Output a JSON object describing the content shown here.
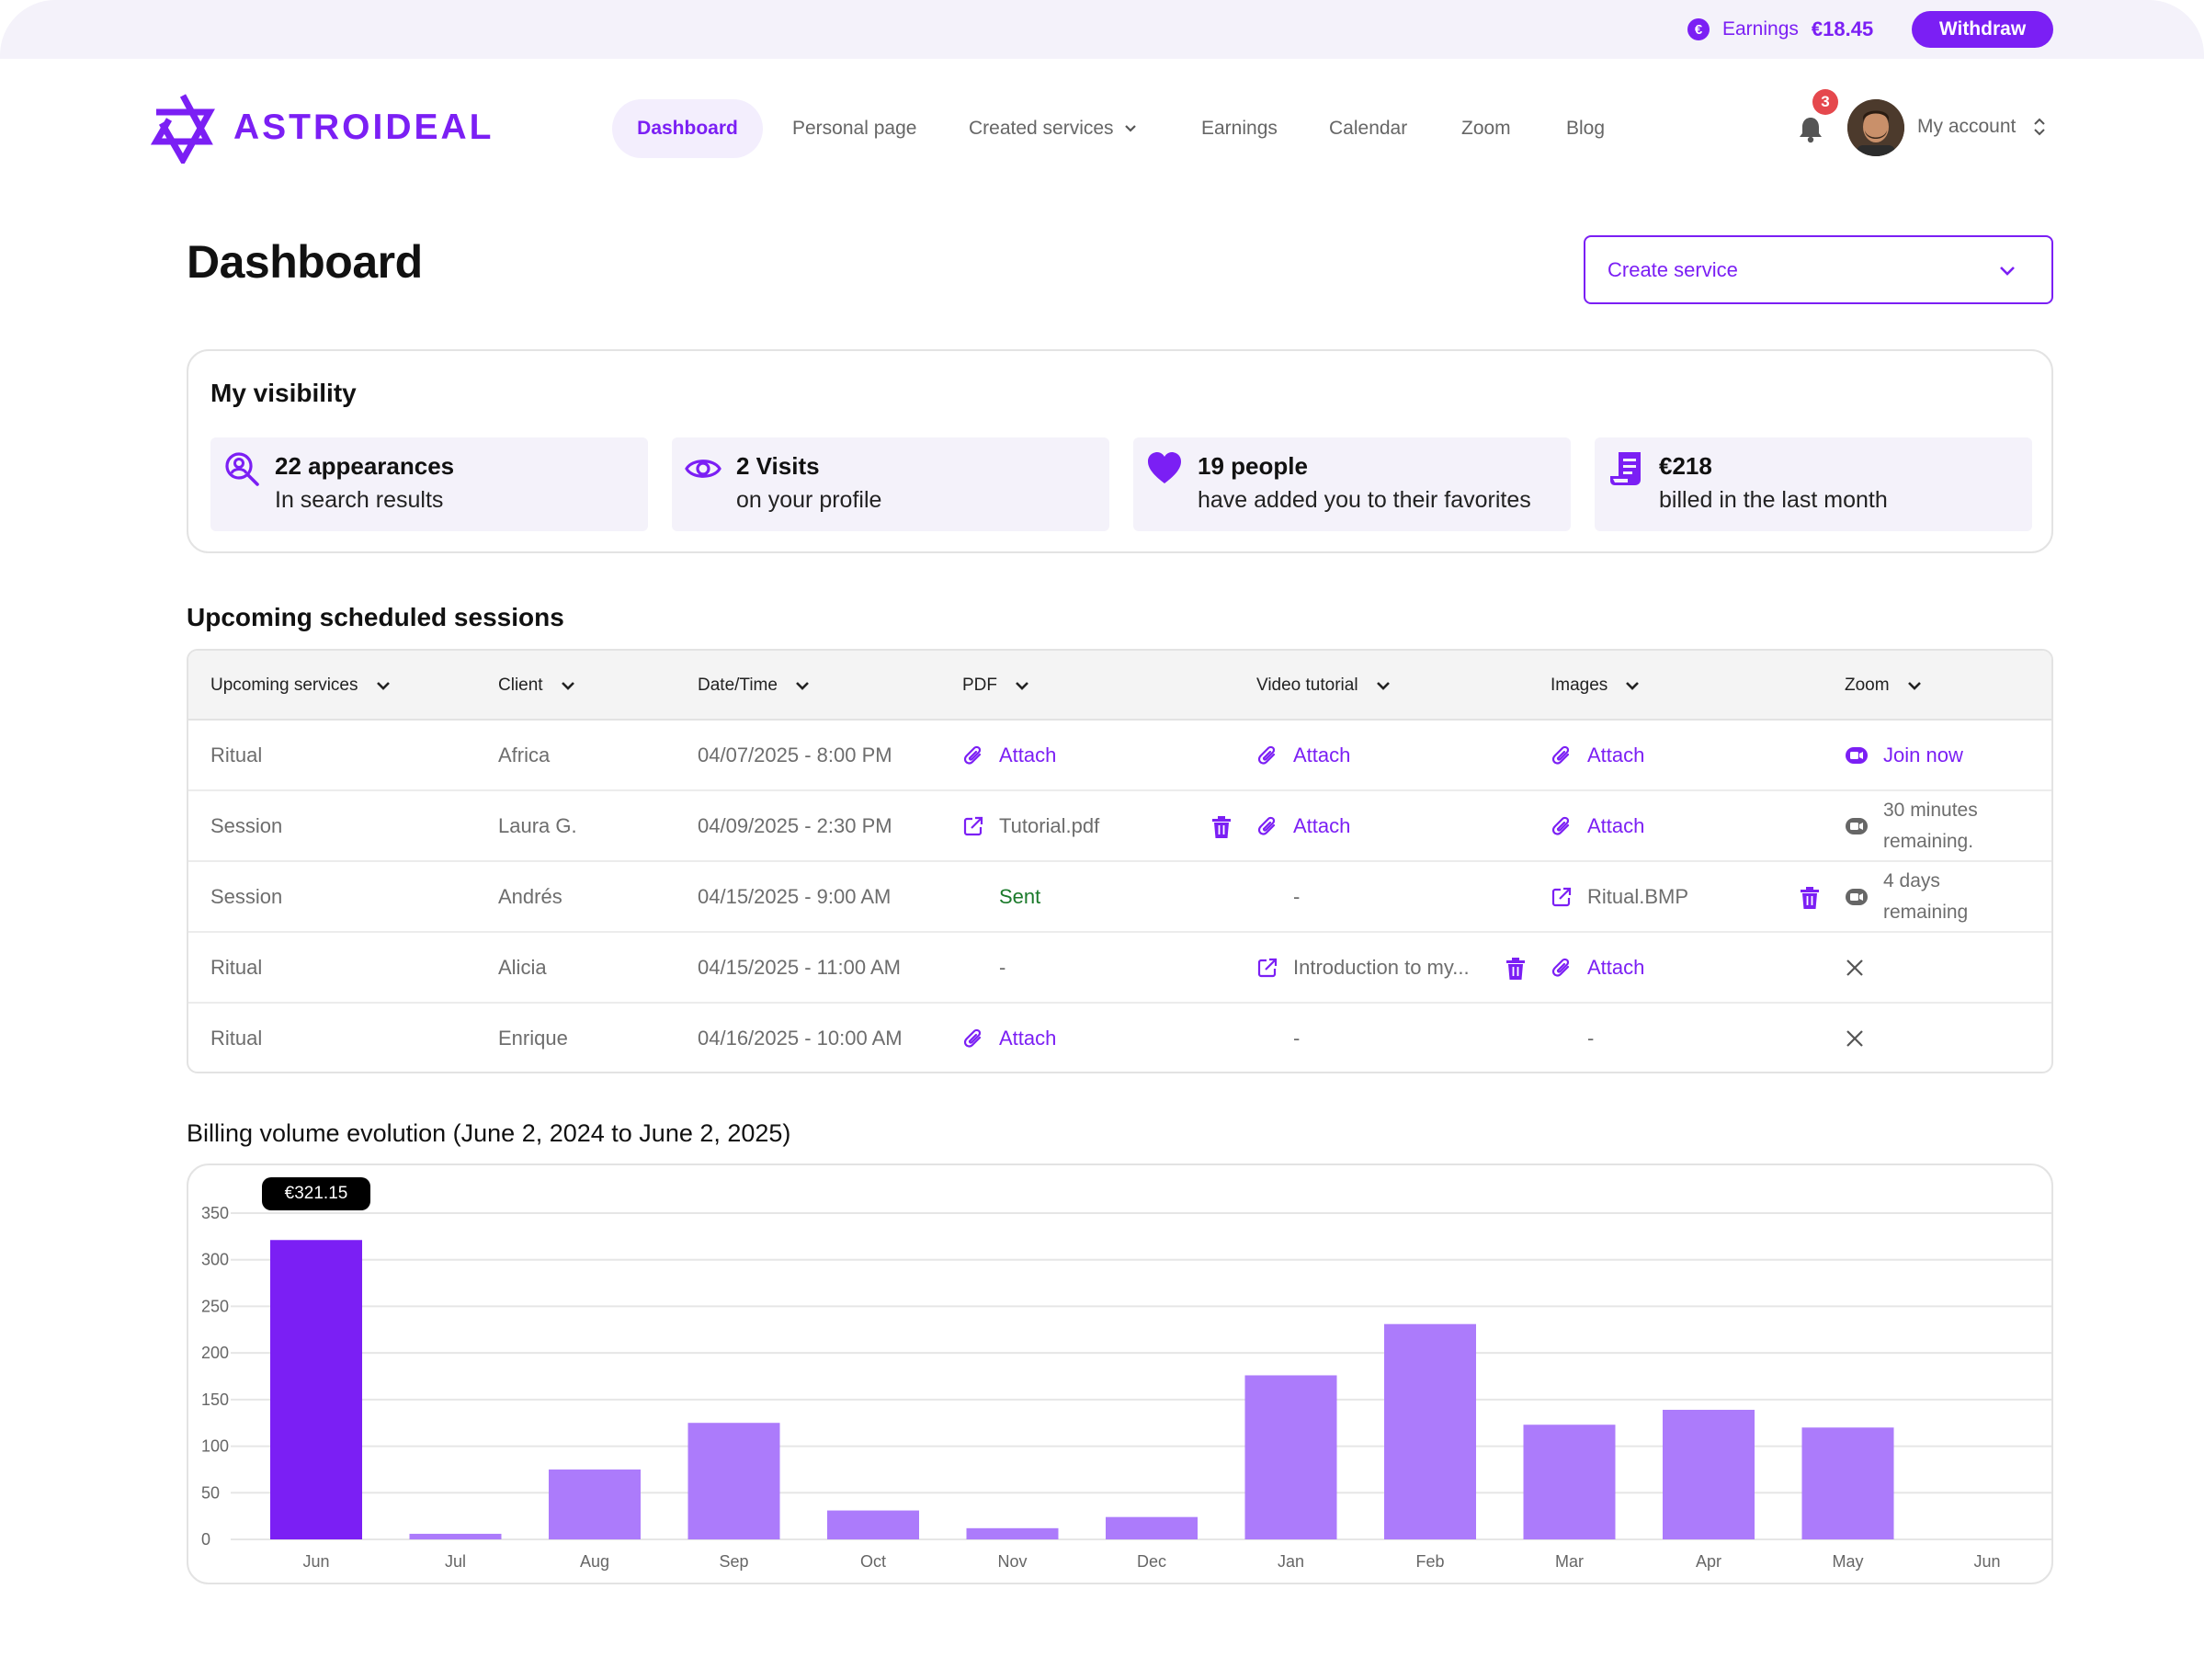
{
  "topbar": {
    "earnings_label": "Earnings",
    "earnings_value": "€18.45",
    "withdraw_label": "Withdraw",
    "coin_icon": "euro-coin-icon"
  },
  "brand": {
    "name": "ASTROIDEAL",
    "color": "#7b1ff4"
  },
  "nav": {
    "items": [
      {
        "label": "Dashboard",
        "active": true
      },
      {
        "label": "Personal page"
      },
      {
        "label": "Created services",
        "has_dropdown": true
      },
      {
        "label": "Earnings"
      },
      {
        "label": "Calendar"
      },
      {
        "label": "Zoom"
      },
      {
        "label": "Blog"
      }
    ],
    "notifications_count": "3",
    "account_label": "My account"
  },
  "page": {
    "title": "Dashboard",
    "create_service_label": "Create service"
  },
  "visibility": {
    "title": "My visibility",
    "tiles": [
      {
        "icon": "search-user-icon",
        "main": "22 appearances",
        "sub": "In search results"
      },
      {
        "icon": "eye-icon",
        "main": "2 Visits",
        "sub": "on your profile"
      },
      {
        "icon": "heart-icon",
        "main": "19 people",
        "sub": "have added you to their favorites"
      },
      {
        "icon": "invoice-icon",
        "main": "€218",
        "sub": "billed in the last month"
      }
    ]
  },
  "sessions": {
    "title": "Upcoming scheduled sessions",
    "columns": [
      "Upcoming services",
      "Client",
      "Date/Time",
      "PDF",
      "Video tutorial",
      "Images",
      "Zoom"
    ],
    "rows": [
      {
        "service": "Ritual",
        "client": "Africa",
        "datetime": "04/07/2025 - 8:00 PM",
        "pdf": {
          "type": "attach",
          "text": "Attach"
        },
        "video": {
          "type": "attach",
          "text": "Attach"
        },
        "images": {
          "type": "attach",
          "text": "Attach"
        },
        "zoom": {
          "type": "join",
          "text": "Join now"
        }
      },
      {
        "service": "Session",
        "client": "Laura G.",
        "datetime": "04/09/2025 - 2:30 PM",
        "pdf": {
          "type": "file",
          "text": "Tutorial.pdf"
        },
        "video": {
          "type": "attach",
          "text": "Attach"
        },
        "images": {
          "type": "attach",
          "text": "Attach"
        },
        "zoom": {
          "type": "remaining",
          "text": "30 minutes remaining."
        }
      },
      {
        "service": "Session",
        "client": "Andrés",
        "datetime": "04/15/2025 - 9:00 AM",
        "pdf": {
          "type": "sent",
          "text": "Sent"
        },
        "video": {
          "type": "none",
          "text": "-"
        },
        "images": {
          "type": "file",
          "text": "Ritual.BMP"
        },
        "zoom": {
          "type": "remaining",
          "text": "4 days remaining"
        }
      },
      {
        "service": "Ritual",
        "client": "Alicia",
        "datetime": "04/15/2025 - 11:00 AM",
        "pdf": {
          "type": "none",
          "text": "-"
        },
        "video": {
          "type": "file",
          "text": "Introduction to my..."
        },
        "images": {
          "type": "attach",
          "text": "Attach"
        },
        "zoom": {
          "type": "unavailable",
          "text": ""
        }
      },
      {
        "service": "Ritual",
        "client": "Enrique",
        "datetime": "04/16/2025 - 10:00 AM",
        "pdf": {
          "type": "attach",
          "text": "Attach"
        },
        "video": {
          "type": "none",
          "text": "-"
        },
        "images": {
          "type": "none",
          "text": "-"
        },
        "zoom": {
          "type": "unavailable",
          "text": ""
        }
      }
    ]
  },
  "billing": {
    "title": "Billing volume evolution (June 2, 2024 to June 2, 2025)",
    "tooltip": "€321.15"
  },
  "chart_data": {
    "type": "bar",
    "categories": [
      "Jun",
      "Jul",
      "Aug",
      "Sep",
      "Oct",
      "Nov",
      "Dec",
      "Jan",
      "Feb",
      "Mar",
      "Apr",
      "May",
      "Jun"
    ],
    "values": [
      321.15,
      6,
      75,
      125,
      31,
      12,
      24,
      176,
      231,
      123,
      139,
      120,
      0
    ],
    "ylim": [
      0,
      350
    ],
    "yticks": [
      0,
      50,
      100,
      150,
      200,
      250,
      300,
      350
    ],
    "highlight_index": 0,
    "colors": {
      "highlight": "#7b1ff4",
      "bar": "#ac7bfb",
      "grid": "#e6e6e6"
    },
    "grid": true
  }
}
